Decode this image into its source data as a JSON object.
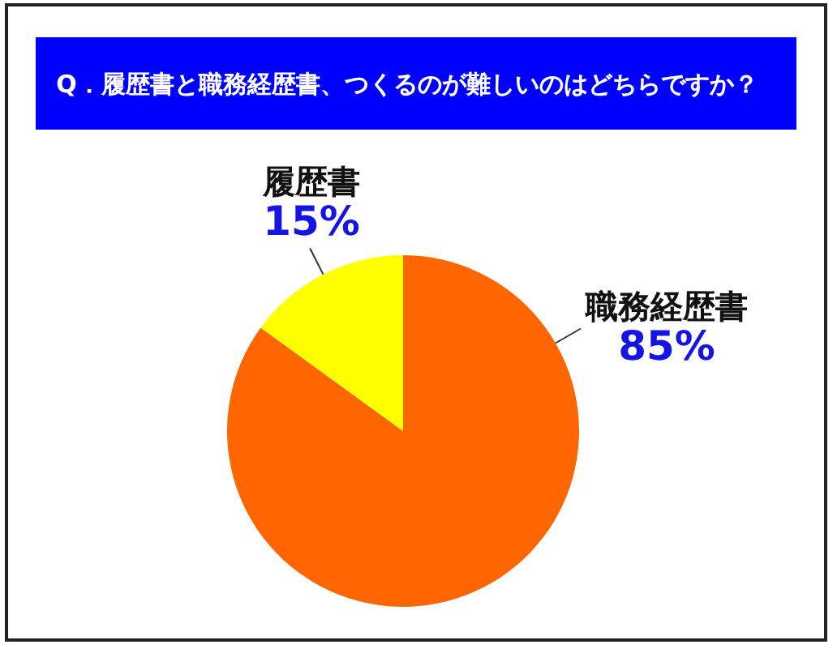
{
  "chart_data": {
    "type": "pie",
    "title": "Q．履歴書と職務経歴書、つくるのが難しいのはどちらですか？",
    "categories": [
      "職務経歴書",
      "履歴書"
    ],
    "values": [
      85,
      15
    ],
    "colors": [
      "#ff6600",
      "#ffff00"
    ],
    "value_labels": [
      "85%",
      "15%"
    ],
    "legend": false
  }
}
